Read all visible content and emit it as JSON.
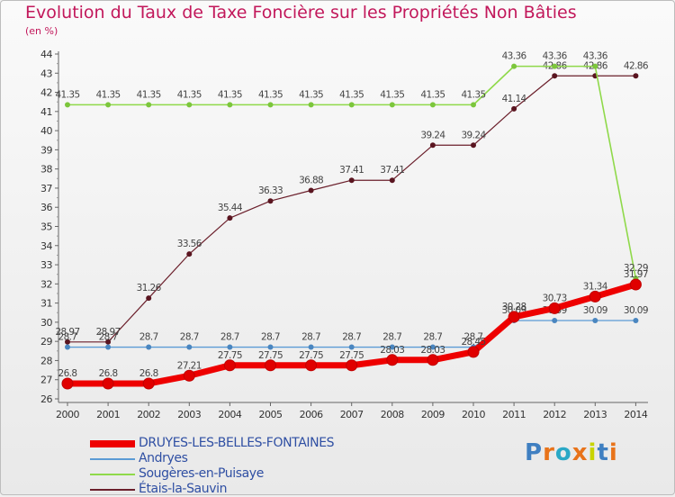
{
  "header": {
    "title": "Evolution du Taux de Taxe Foncière sur les Propriétés Non Bâties",
    "subtitle": "(en %)"
  },
  "logo": {
    "text": "Proxiti",
    "colors": [
      "#3f7fc1",
      "#e8731a",
      "#2aa8c6",
      "#e8731a",
      "#c8d400",
      "#3f7fc1",
      "#e8731a"
    ]
  },
  "chart_data": {
    "type": "line",
    "title": "Evolution du Taux de Taxe Foncière sur les Propriétés Non Bâties",
    "ylabel": "(en %)",
    "xlabel": "",
    "ylim": [
      26,
      44
    ],
    "yticks": [
      26,
      27,
      28,
      29,
      30,
      31,
      32,
      33,
      34,
      35,
      36,
      37,
      38,
      39,
      40,
      41,
      42,
      43,
      44
    ],
    "grid": false,
    "legend_position": "bottom-left",
    "categories": [
      "2000",
      "2001",
      "2002",
      "2003",
      "2004",
      "2005",
      "2006",
      "2007",
      "2008",
      "2009",
      "2010",
      "2011",
      "2012",
      "2013",
      "2014"
    ],
    "series": [
      {
        "name": "Étais-la-Sauvin",
        "color": "#6b1f2b",
        "marker": "#5a1520",
        "width": 1.2,
        "values": [
          28.97,
          28.97,
          31.26,
          33.56,
          35.44,
          36.33,
          36.88,
          37.41,
          37.41,
          39.24,
          39.24,
          41.14,
          42.86,
          42.86,
          42.86
        ],
        "labels": [
          "28.97",
          "28.97",
          "31.26",
          "33.56",
          "35.44",
          "36.33",
          "36.88",
          "37.41",
          "37.41",
          "39.24",
          "39.24",
          "41.14",
          "42.86",
          "42.86",
          "42.86"
        ]
      },
      {
        "name": "Sougères-en-Puisaye",
        "color": "#8fd94a",
        "marker": "#7cc63c",
        "width": 1.6,
        "values": [
          41.35,
          41.35,
          41.35,
          41.35,
          41.35,
          41.35,
          41.35,
          41.35,
          41.35,
          41.35,
          41.35,
          43.36,
          43.36,
          43.36,
          32.29
        ],
        "labels": [
          "41.35",
          "41.35",
          "41.35",
          "41.35",
          "41.35",
          "41.35",
          "41.35",
          "41.35",
          "41.35",
          "41.35",
          "41.35",
          "43.36",
          "43.36",
          "43.36",
          "32.29"
        ]
      },
      {
        "name": "Andryes",
        "color": "#5b9bd5",
        "marker": "#4a86c0",
        "width": 1.3,
        "values": [
          28.7,
          28.7,
          28.7,
          28.7,
          28.7,
          28.7,
          28.7,
          28.7,
          28.7,
          28.7,
          28.7,
          30.09,
          30.09,
          30.09,
          30.09
        ],
        "labels": [
          "28.7",
          "28.7",
          "28.7",
          "28.7",
          "28.7",
          "28.7",
          "28.7",
          "28.7",
          "28.7",
          "28.7",
          "28.7",
          "30.09",
          "30.09",
          "30.09",
          "30.09"
        ]
      },
      {
        "name": "DRUYES-LES-BELLES-FONTAINES",
        "color": "#ee0000",
        "marker": "#e00000",
        "width": 7,
        "values": [
          26.8,
          26.8,
          26.8,
          27.21,
          27.75,
          27.75,
          27.75,
          27.75,
          28.03,
          28.03,
          28.45,
          30.28,
          30.73,
          31.34,
          31.97
        ],
        "labels": [
          "26.8",
          "26.8",
          "26.8",
          "27.21",
          "27.75",
          "27.75",
          "27.75",
          "27.75",
          "28.03",
          "28.03",
          "28.45",
          "30.28",
          "30.73",
          "31.34",
          "31.97"
        ]
      }
    ],
    "legend": [
      {
        "name": "DRUYES-LES-BELLES-FONTAINES",
        "color": "#ee0000",
        "thick": true
      },
      {
        "name": "Andryes",
        "color": "#5b9bd5",
        "thick": false
      },
      {
        "name": "Sougères-en-Puisaye",
        "color": "#8fd94a",
        "thick": false
      },
      {
        "name": "Étais-la-Sauvin",
        "color": "#6b1f2b",
        "thick": false
      }
    ]
  }
}
